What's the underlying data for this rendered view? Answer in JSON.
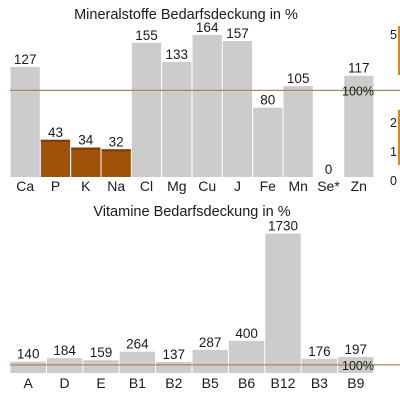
{
  "chart_data": [
    {
      "type": "bar",
      "title": "Mineralstoffe Bedarfsdeckung in %",
      "categories": [
        "Ca",
        "P",
        "K",
        "Na",
        "Cl",
        "Mg",
        "Cu",
        "J",
        "Fe",
        "Mn",
        "Se*",
        "Zn"
      ],
      "values": [
        127,
        43,
        34,
        32,
        155,
        133,
        164,
        157,
        80,
        105,
        0,
        117
      ],
      "highlight_categories": [
        "P",
        "K",
        "Na"
      ],
      "reference_line": {
        "value": 100,
        "label": "100%"
      },
      "ylim": [
        0,
        180
      ],
      "bar_color": "#cccccc",
      "highlight_color": "#a0520a",
      "reference_color": "#a98a55",
      "clipped_side_axis": {
        "tick_labels": [
          "5",
          "2",
          "1",
          "0"
        ],
        "color": "#d28a1e"
      }
    },
    {
      "type": "bar",
      "title": "Vitamine Bedarfsdeckung in %",
      "categories": [
        "A",
        "D",
        "E",
        "B1",
        "B2",
        "B5",
        "B6",
        "B12",
        "B3",
        "B9"
      ],
      "values": [
        140,
        184,
        159,
        264,
        137,
        287,
        400,
        1730,
        176,
        197
      ],
      "reference_line": {
        "value": 100,
        "label": "100%"
      },
      "ylim": [
        0,
        1900
      ],
      "bar_color": "#cccccc",
      "reference_color": "#a98a55"
    }
  ]
}
